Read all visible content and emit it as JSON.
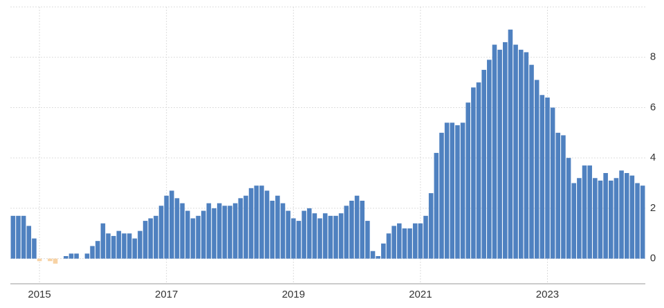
{
  "chart_data": {
    "type": "bar",
    "categories": [
      null,
      null,
      null,
      null,
      null,
      "2015",
      null,
      null,
      null,
      null,
      null,
      null,
      null,
      null,
      null,
      null,
      null,
      null,
      null,
      null,
      null,
      null,
      null,
      null,
      null,
      null,
      null,
      null,
      null,
      "2017",
      null,
      null,
      null,
      null,
      null,
      null,
      null,
      null,
      null,
      null,
      null,
      null,
      null,
      null,
      null,
      null,
      null,
      null,
      null,
      null,
      null,
      null,
      null,
      "2019",
      null,
      null,
      null,
      null,
      null,
      null,
      null,
      null,
      null,
      null,
      null,
      null,
      null,
      null,
      null,
      null,
      null,
      null,
      null,
      null,
      null,
      null,
      null,
      "2021",
      null,
      null,
      null,
      null,
      null,
      null,
      null,
      null,
      null,
      null,
      null,
      null,
      null,
      null,
      null,
      null,
      null,
      null,
      null,
      null,
      null,
      null,
      null,
      "2023",
      null,
      null,
      null,
      null,
      null,
      null,
      null,
      null,
      null,
      null,
      null,
      null,
      null,
      null,
      null,
      null,
      null,
      null
    ],
    "values": [
      1.7,
      1.7,
      1.7,
      1.3,
      0.8,
      -0.1,
      0.0,
      -0.1,
      -0.2,
      0.0,
      0.1,
      0.2,
      0.2,
      0.0,
      0.2,
      0.5,
      0.7,
      1.4,
      1.0,
      0.9,
      1.1,
      1.0,
      1.0,
      0.8,
      1.1,
      1.5,
      1.6,
      1.7,
      2.1,
      2.5,
      2.7,
      2.4,
      2.2,
      1.9,
      1.6,
      1.7,
      1.9,
      2.2,
      2.0,
      2.2,
      2.1,
      2.1,
      2.2,
      2.4,
      2.5,
      2.8,
      2.9,
      2.9,
      2.7,
      2.3,
      2.5,
      2.2,
      1.9,
      1.6,
      1.5,
      1.9,
      2.0,
      1.8,
      1.6,
      1.8,
      1.7,
      1.7,
      1.8,
      2.1,
      2.3,
      2.5,
      2.3,
      1.5,
      0.3,
      0.1,
      0.6,
      1.0,
      1.3,
      1.4,
      1.2,
      1.2,
      1.4,
      1.4,
      1.7,
      2.6,
      4.2,
      5.0,
      5.4,
      5.4,
      5.3,
      5.4,
      6.2,
      6.8,
      7.0,
      7.5,
      7.9,
      8.5,
      8.3,
      8.6,
      9.1,
      8.5,
      8.3,
      8.2,
      7.7,
      7.1,
      6.5,
      6.4,
      6.0,
      5.0,
      4.9,
      4.0,
      3.0,
      3.2,
      3.7,
      3.7,
      3.2,
      3.1,
      3.4,
      3.1,
      3.2,
      3.5,
      3.4,
      3.3,
      3.0,
      2.9
    ],
    "color": "#4f81c0",
    "negative_color": "#f7d2a4",
    "ylim": [
      -1,
      10
    ],
    "yticks": [
      0,
      2,
      4,
      6,
      8
    ],
    "grid": true
  }
}
